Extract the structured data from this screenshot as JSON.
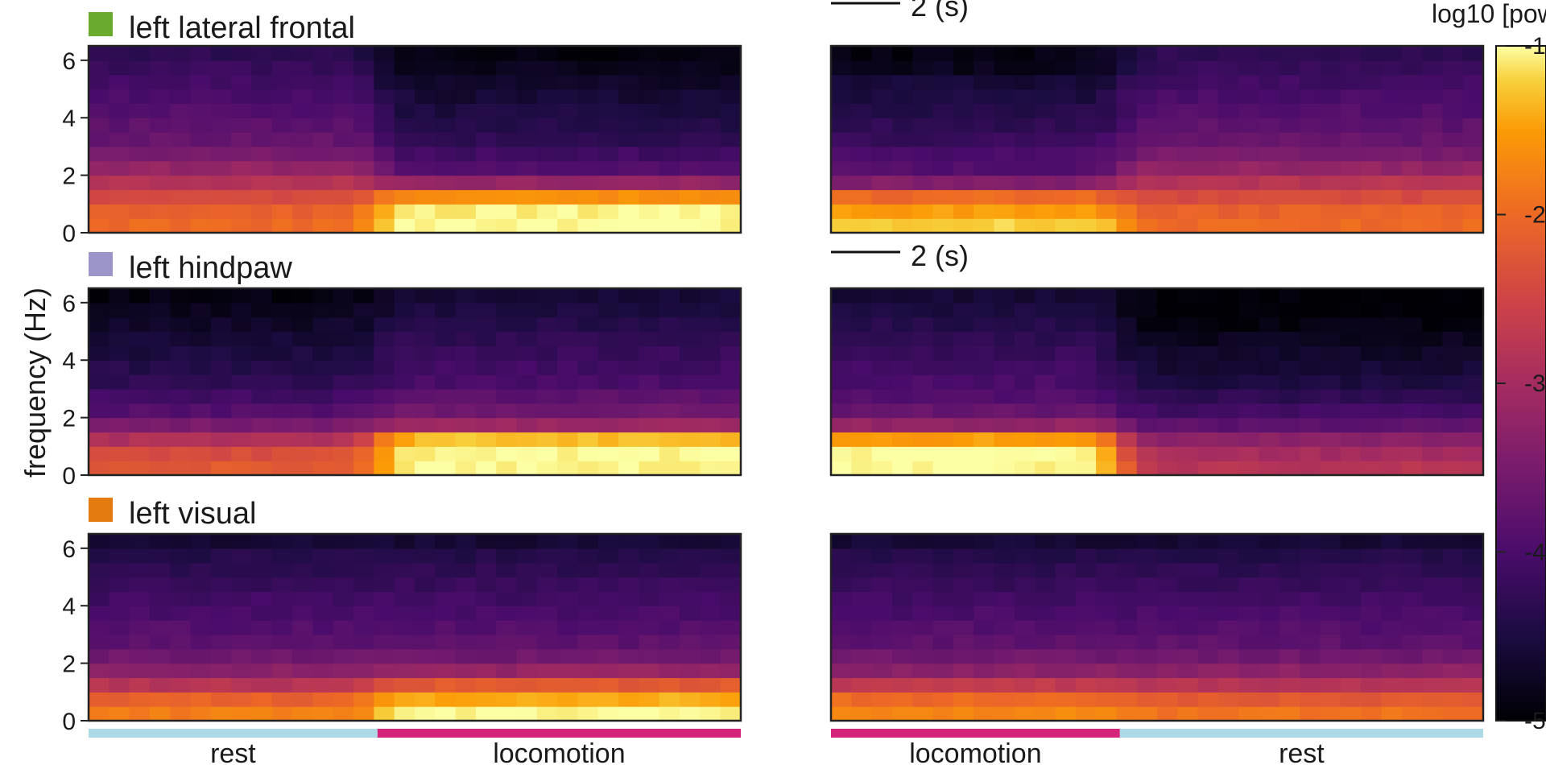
{
  "chart_data": {
    "type": "heatmap",
    "ylabel": "frequency (Hz)",
    "ylim": [
      0,
      6.5
    ],
    "yticks": [
      0,
      2,
      4,
      6
    ],
    "colorbar": {
      "title": "log10 [pow",
      "ticks": [
        "-1",
        "-2",
        "-3",
        "-4",
        "-5"
      ],
      "range": [
        -5,
        -1
      ],
      "colormap": "inferno"
    },
    "scale_bar_label": "2 (s)",
    "states": {
      "rest_label": "rest",
      "locomotion_label": "locomotion",
      "rest_color": "#add8e6",
      "locomotion_color": "#d6247a"
    },
    "regions": [
      {
        "name": "left lateral frontal",
        "color": "#6aaa2e"
      },
      {
        "name": "left hindpaw",
        "color": "#9b95c9"
      },
      {
        "name": "left visual",
        "color": "#e37b11"
      }
    ],
    "columns": [
      {
        "id": "onset",
        "segments": [
          {
            "state": "rest",
            "fraction": 0.443
          },
          {
            "state": "locomotion",
            "fraction": 0.557
          }
        ]
      },
      {
        "id": "offset",
        "segments": [
          {
            "state": "locomotion",
            "fraction": 0.443
          },
          {
            "state": "rest",
            "fraction": 0.557
          }
        ]
      }
    ],
    "time_bins": 32,
    "freq_axis_hz": [
      0.25,
      0.75,
      1.25,
      1.75,
      2.25,
      2.75,
      3.25,
      3.75,
      4.25,
      4.75,
      5.25,
      5.75,
      6.25
    ],
    "panels": [
      {
        "region": "left lateral frontal",
        "column": "onset",
        "rest_profile": [
          -2.0,
          -2.1,
          -2.4,
          -2.8,
          -3.2,
          -3.5,
          -3.7,
          -3.8,
          -3.9,
          -4.0,
          -4.1,
          -4.2,
          -4.3
        ],
        "locomotion_profile": [
          -1.0,
          -1.05,
          -1.6,
          -3.2,
          -3.9,
          -4.1,
          -4.3,
          -4.4,
          -4.5,
          -4.6,
          -4.7,
          -4.8,
          -4.9
        ]
      },
      {
        "region": "left lateral frontal",
        "column": "offset",
        "rest_profile": [
          -2.0,
          -2.1,
          -2.4,
          -2.8,
          -3.2,
          -3.5,
          -3.7,
          -3.8,
          -3.9,
          -4.0,
          -4.1,
          -4.2,
          -4.3
        ],
        "locomotion_profile": [
          -1.2,
          -1.5,
          -2.0,
          -3.4,
          -3.9,
          -4.0,
          -4.2,
          -4.3,
          -4.4,
          -4.5,
          -4.6,
          -4.8,
          -4.9
        ]
      },
      {
        "region": "left hindpaw",
        "column": "onset",
        "rest_profile": [
          -2.2,
          -2.4,
          -2.9,
          -3.5,
          -3.9,
          -4.1,
          -4.3,
          -4.4,
          -4.5,
          -4.6,
          -4.7,
          -4.8,
          -4.9
        ],
        "locomotion_profile": [
          -1.0,
          -1.0,
          -1.3,
          -3.1,
          -3.6,
          -3.8,
          -4.0,
          -4.1,
          -4.2,
          -4.3,
          -4.4,
          -4.5,
          -4.6
        ]
      },
      {
        "region": "left hindpaw",
        "column": "offset",
        "rest_profile": [
          -2.8,
          -3.0,
          -3.3,
          -3.8,
          -4.1,
          -4.3,
          -4.5,
          -4.6,
          -4.7,
          -4.8,
          -4.9,
          -5.0,
          -5.0
        ],
        "locomotion_profile": [
          -1.0,
          -1.0,
          -1.5,
          -3.2,
          -3.7,
          -3.9,
          -4.0,
          -4.1,
          -4.2,
          -4.3,
          -4.4,
          -4.5,
          -4.6
        ]
      },
      {
        "region": "left visual",
        "column": "onset",
        "rest_profile": [
          -1.8,
          -2.1,
          -2.8,
          -3.3,
          -3.6,
          -3.8,
          -3.9,
          -4.0,
          -4.1,
          -4.2,
          -4.3,
          -4.4,
          -4.6
        ],
        "locomotion_profile": [
          -1.0,
          -1.4,
          -2.2,
          -3.2,
          -3.6,
          -3.8,
          -3.9,
          -4.0,
          -4.1,
          -4.2,
          -4.3,
          -4.4,
          -4.6
        ]
      },
      {
        "region": "left visual",
        "column": "offset",
        "rest_profile": [
          -1.9,
          -2.2,
          -2.8,
          -3.3,
          -3.6,
          -3.8,
          -3.9,
          -4.0,
          -4.1,
          -4.2,
          -4.3,
          -4.4,
          -4.6
        ],
        "locomotion_profile": [
          -1.7,
          -2.0,
          -2.7,
          -3.3,
          -3.6,
          -3.8,
          -3.9,
          -4.0,
          -4.1,
          -4.2,
          -4.3,
          -4.4,
          -4.6
        ]
      }
    ]
  }
}
